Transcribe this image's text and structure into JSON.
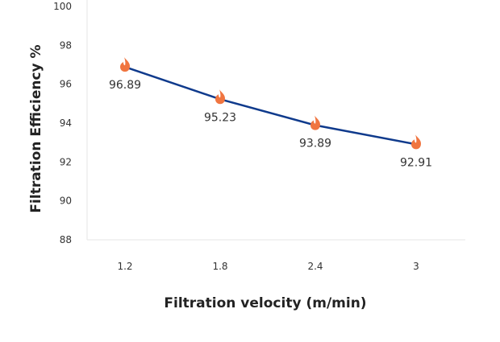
{
  "chart_data": {
    "type": "line",
    "title": "",
    "xlabel": "Filtration velocity (m/min)",
    "ylabel": "Filtration Efficiency %",
    "categories": [
      "1.2",
      "1.8",
      "2.4",
      "3"
    ],
    "series": [
      {
        "name": "Filtration Efficiency",
        "values": [
          96.89,
          95.23,
          93.89,
          92.91
        ],
        "data_labels": [
          "96.89",
          "95.23",
          "93.89",
          "92.91"
        ],
        "marker": "flame-icon"
      }
    ],
    "ylim": [
      88,
      100
    ],
    "yticks": [
      "88",
      "90",
      "92",
      "94",
      "96",
      "98",
      "100"
    ],
    "grid": false,
    "legend": "none",
    "colors": {
      "line": "#0f3a8c",
      "marker": "#f07540",
      "axis": "#e6e6e6",
      "text": "#333333"
    }
  }
}
